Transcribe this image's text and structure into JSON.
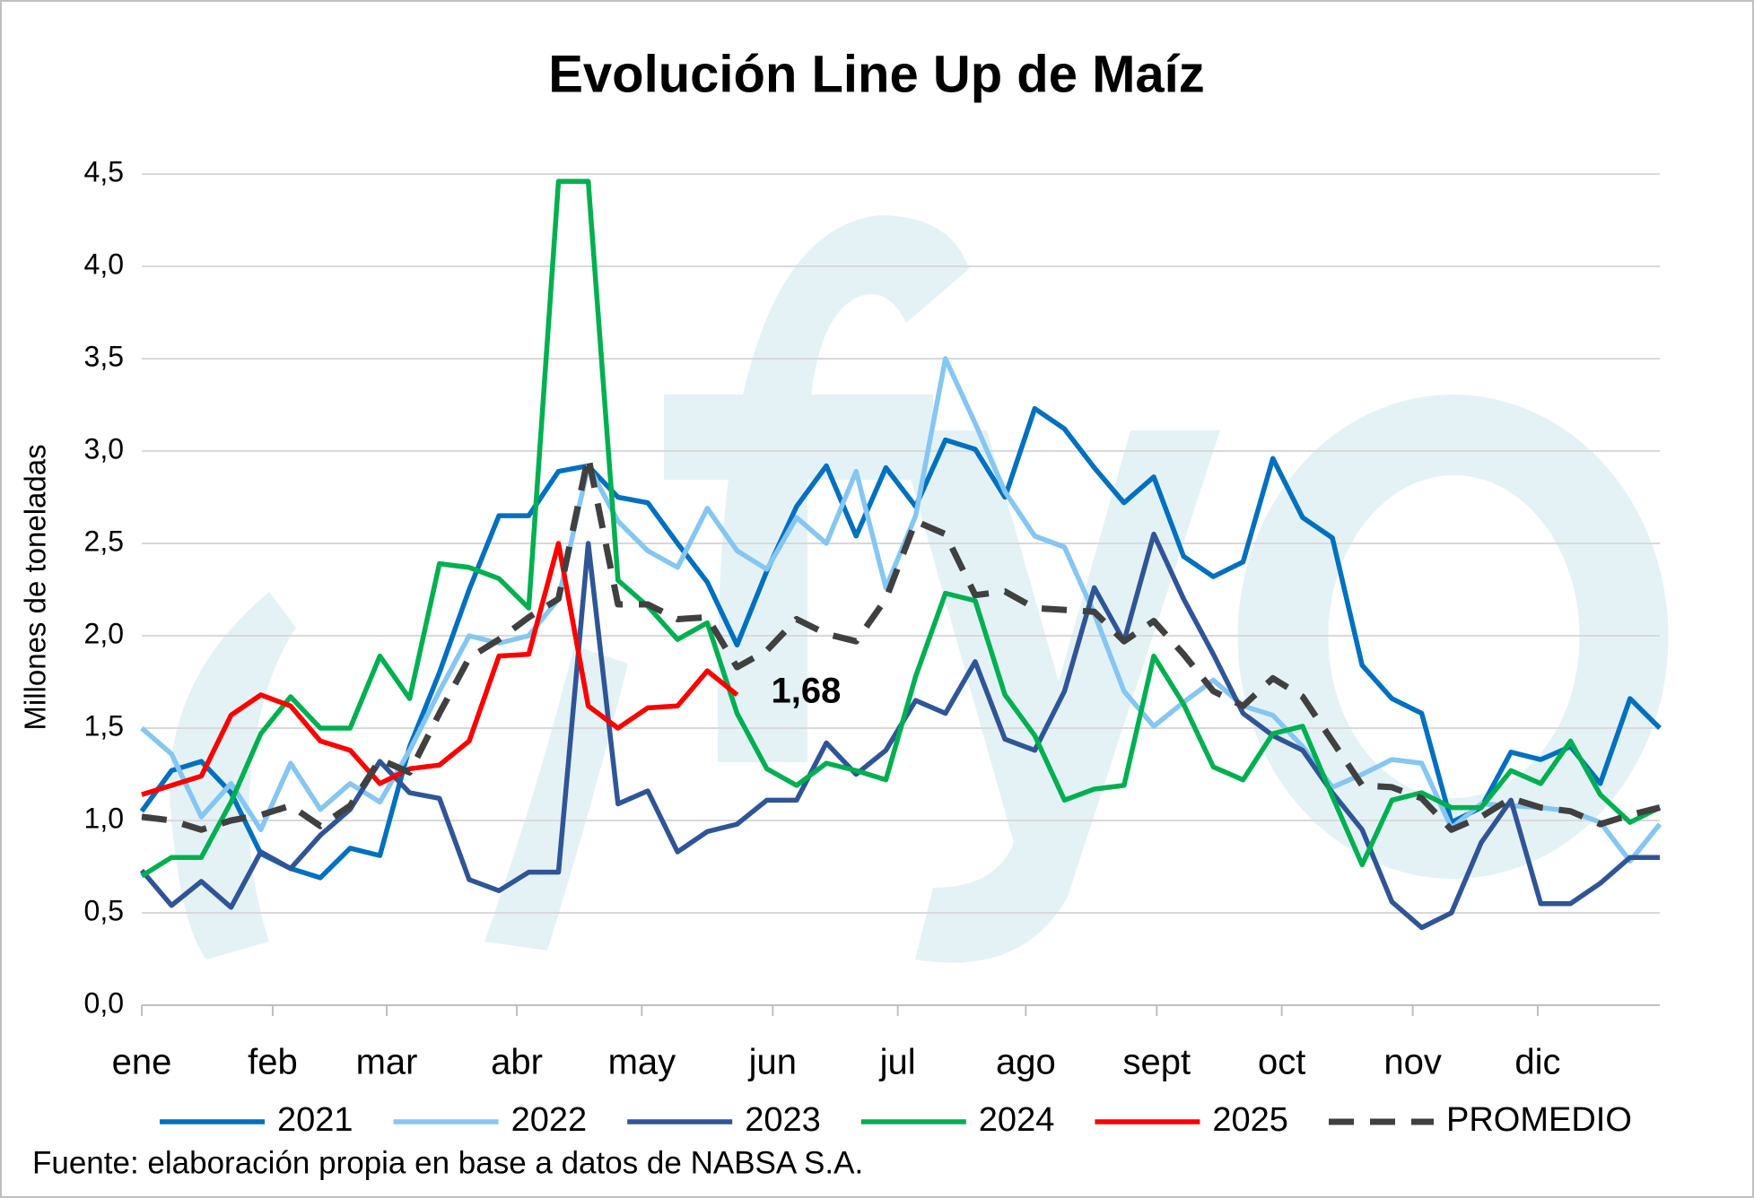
{
  "chart_data": {
    "type": "line",
    "title": "Evolución Line Up de Maíz",
    "y_label": "Millones de toneladas",
    "source": "Fuente: elaboración propia en base a datos de NABSA S.A.",
    "x": [
      0,
      1,
      2,
      3,
      4,
      5,
      6,
      7,
      8,
      9,
      10,
      11,
      12,
      13,
      14,
      15,
      16,
      17,
      18,
      19,
      20,
      21,
      22,
      23,
      24,
      25,
      26,
      27,
      28,
      29,
      30,
      31,
      32,
      33,
      34,
      35,
      36,
      37,
      38,
      39,
      40,
      41,
      42,
      43,
      44,
      45,
      46,
      47,
      48,
      49,
      50,
      51
    ],
    "xlim": [
      0,
      51
    ],
    "xticks": [
      {
        "value": 0,
        "label": "ene"
      },
      {
        "value": 4.4,
        "label": "feb"
      },
      {
        "value": 8.23,
        "label": "mar"
      },
      {
        "value": 12.6,
        "label": "abr"
      },
      {
        "value": 16.8,
        "label": "may"
      },
      {
        "value": 21.2,
        "label": "jun"
      },
      {
        "value": 25.4,
        "label": "jul"
      },
      {
        "value": 29.7,
        "label": "ago"
      },
      {
        "value": 34.1,
        "label": "sept"
      },
      {
        "value": 38.3,
        "label": "oct"
      },
      {
        "value": 42.7,
        "label": "nov"
      },
      {
        "value": 46.9,
        "label": "dic"
      }
    ],
    "ylim": [
      0,
      4.5
    ],
    "yticks": [
      {
        "value": 0,
        "label": "0,0"
      },
      {
        "value": 0.5,
        "label": "0,5"
      },
      {
        "value": 1,
        "label": "1,0"
      },
      {
        "value": 1.5,
        "label": "1,5"
      },
      {
        "value": 2,
        "label": "2,0"
      },
      {
        "value": 2.5,
        "label": "2,5"
      },
      {
        "value": 3,
        "label": "3,0"
      },
      {
        "value": 3.5,
        "label": "3,5"
      },
      {
        "value": 4,
        "label": "4,0"
      },
      {
        "value": 4.5,
        "label": "4,5"
      }
    ],
    "grid": true,
    "series": [
      {
        "name": "2021",
        "color": "#0070c0",
        "values": [
          1.05,
          1.27,
          1.32,
          1.15,
          0.82,
          0.74,
          0.69,
          0.85,
          0.81,
          1.4,
          1.8,
          2.25,
          2.65,
          2.65,
          2.89,
          2.92,
          2.75,
          2.72,
          2.5,
          2.29,
          1.95,
          2.35,
          2.7,
          2.92,
          2.54,
          2.91,
          2.7,
          3.06,
          3.01,
          2.75,
          3.23,
          3.12,
          2.91,
          2.72,
          2.86,
          2.43,
          2.32,
          2.4,
          2.96,
          2.64,
          2.53,
          1.84,
          1.66,
          1.58,
          0.99,
          1.07,
          1.37,
          1.33,
          1.4,
          1.2,
          1.66,
          1.5
        ]
      },
      {
        "name": "2022",
        "color": "#85c6f2",
        "values": [
          1.5,
          1.36,
          1.02,
          1.2,
          0.95,
          1.31,
          1.06,
          1.2,
          1.1,
          1.38,
          1.7,
          2.0,
          1.96,
          2.0,
          2.2,
          2.92,
          2.62,
          2.46,
          2.37,
          2.69,
          2.46,
          2.36,
          2.64,
          2.5,
          2.89,
          2.26,
          2.65,
          3.5,
          3.15,
          2.78,
          2.54,
          2.48,
          2.12,
          1.7,
          1.51,
          1.64,
          1.76,
          1.62,
          1.57,
          1.4,
          1.18,
          1.25,
          1.33,
          1.31,
          0.96,
          1.09,
          1.08,
          1.07,
          1.05,
          0.99,
          0.78,
          0.98
        ]
      },
      {
        "name": "2023",
        "color": "#2f5597",
        "values": [
          0.73,
          0.54,
          0.67,
          0.53,
          0.83,
          0.74,
          0.92,
          1.06,
          1.32,
          1.15,
          1.12,
          0.68,
          0.62,
          0.72,
          0.72,
          2.5,
          1.09,
          1.16,
          0.83,
          0.94,
          0.98,
          1.11,
          1.11,
          1.42,
          1.25,
          1.38,
          1.65,
          1.58,
          1.86,
          1.44,
          1.38,
          1.7,
          2.26,
          1.97,
          2.55,
          2.2,
          1.9,
          1.58,
          1.46,
          1.38,
          1.15,
          0.95,
          0.56,
          0.42,
          0.5,
          0.88,
          1.11,
          0.55,
          0.55,
          0.66,
          0.8,
          0.8
        ]
      },
      {
        "name": "2024",
        "color": "#00b050",
        "values": [
          0.7,
          0.8,
          0.8,
          1.1,
          1.47,
          1.67,
          1.5,
          1.5,
          1.89,
          1.66,
          2.39,
          2.37,
          2.31,
          2.15,
          4.46,
          4.46,
          2.3,
          2.16,
          1.98,
          2.07,
          1.58,
          1.28,
          1.19,
          1.31,
          1.27,
          1.22,
          1.78,
          2.23,
          2.19,
          1.68,
          1.46,
          1.11,
          1.17,
          1.19,
          1.89,
          1.63,
          1.29,
          1.22,
          1.47,
          1.51,
          1.13,
          0.76,
          1.11,
          1.15,
          1.07,
          1.07,
          1.27,
          1.2,
          1.43,
          1.14,
          0.99,
          1.07
        ]
      },
      {
        "name": "2025",
        "color": "#ff0000",
        "values": [
          1.14,
          1.19,
          1.24,
          1.57,
          1.68,
          1.62,
          1.43,
          1.38,
          1.2,
          1.28,
          1.3,
          1.43,
          1.89,
          1.9,
          2.5,
          1.62,
          1.5,
          1.61,
          1.62,
          1.81,
          1.68,
          null,
          null,
          null,
          null,
          null,
          null,
          null,
          null,
          null,
          null,
          null,
          null,
          null,
          null,
          null,
          null,
          null,
          null,
          null,
          null,
          null,
          null,
          null,
          null,
          null,
          null,
          null,
          null,
          null,
          null,
          null
        ],
        "value_labels": [
          null,
          null,
          null,
          null,
          null,
          null,
          null,
          null,
          null,
          null,
          null,
          null,
          null,
          null,
          null,
          null,
          null,
          null,
          null,
          null,
          "1,68",
          null,
          null,
          null,
          null,
          null,
          null,
          null,
          null,
          null,
          null,
          null,
          null,
          null,
          null,
          null,
          null,
          null,
          null,
          null,
          null,
          null,
          null,
          null,
          null,
          null,
          null,
          null,
          null,
          null,
          null,
          null
        ]
      },
      {
        "name": "PROMEDIO",
        "color": "#404040",
        "dashed": true,
        "values": [
          1.02,
          1.0,
          0.95,
          1.0,
          1.03,
          1.08,
          0.97,
          1.08,
          1.33,
          1.26,
          1.58,
          1.88,
          1.98,
          2.1,
          2.2,
          2.97,
          2.17,
          2.17,
          2.09,
          2.1,
          1.83,
          1.92,
          2.09,
          2.01,
          1.97,
          2.2,
          2.62,
          2.55,
          2.22,
          2.24,
          2.15,
          2.14,
          2.13,
          1.97,
          2.08,
          1.9,
          1.7,
          1.62,
          1.77,
          1.67,
          1.43,
          1.19,
          1.18,
          1.12,
          0.95,
          1.02,
          1.12,
          1.07,
          1.05,
          0.98,
          1.03,
          1.07
        ]
      }
    ]
  }
}
